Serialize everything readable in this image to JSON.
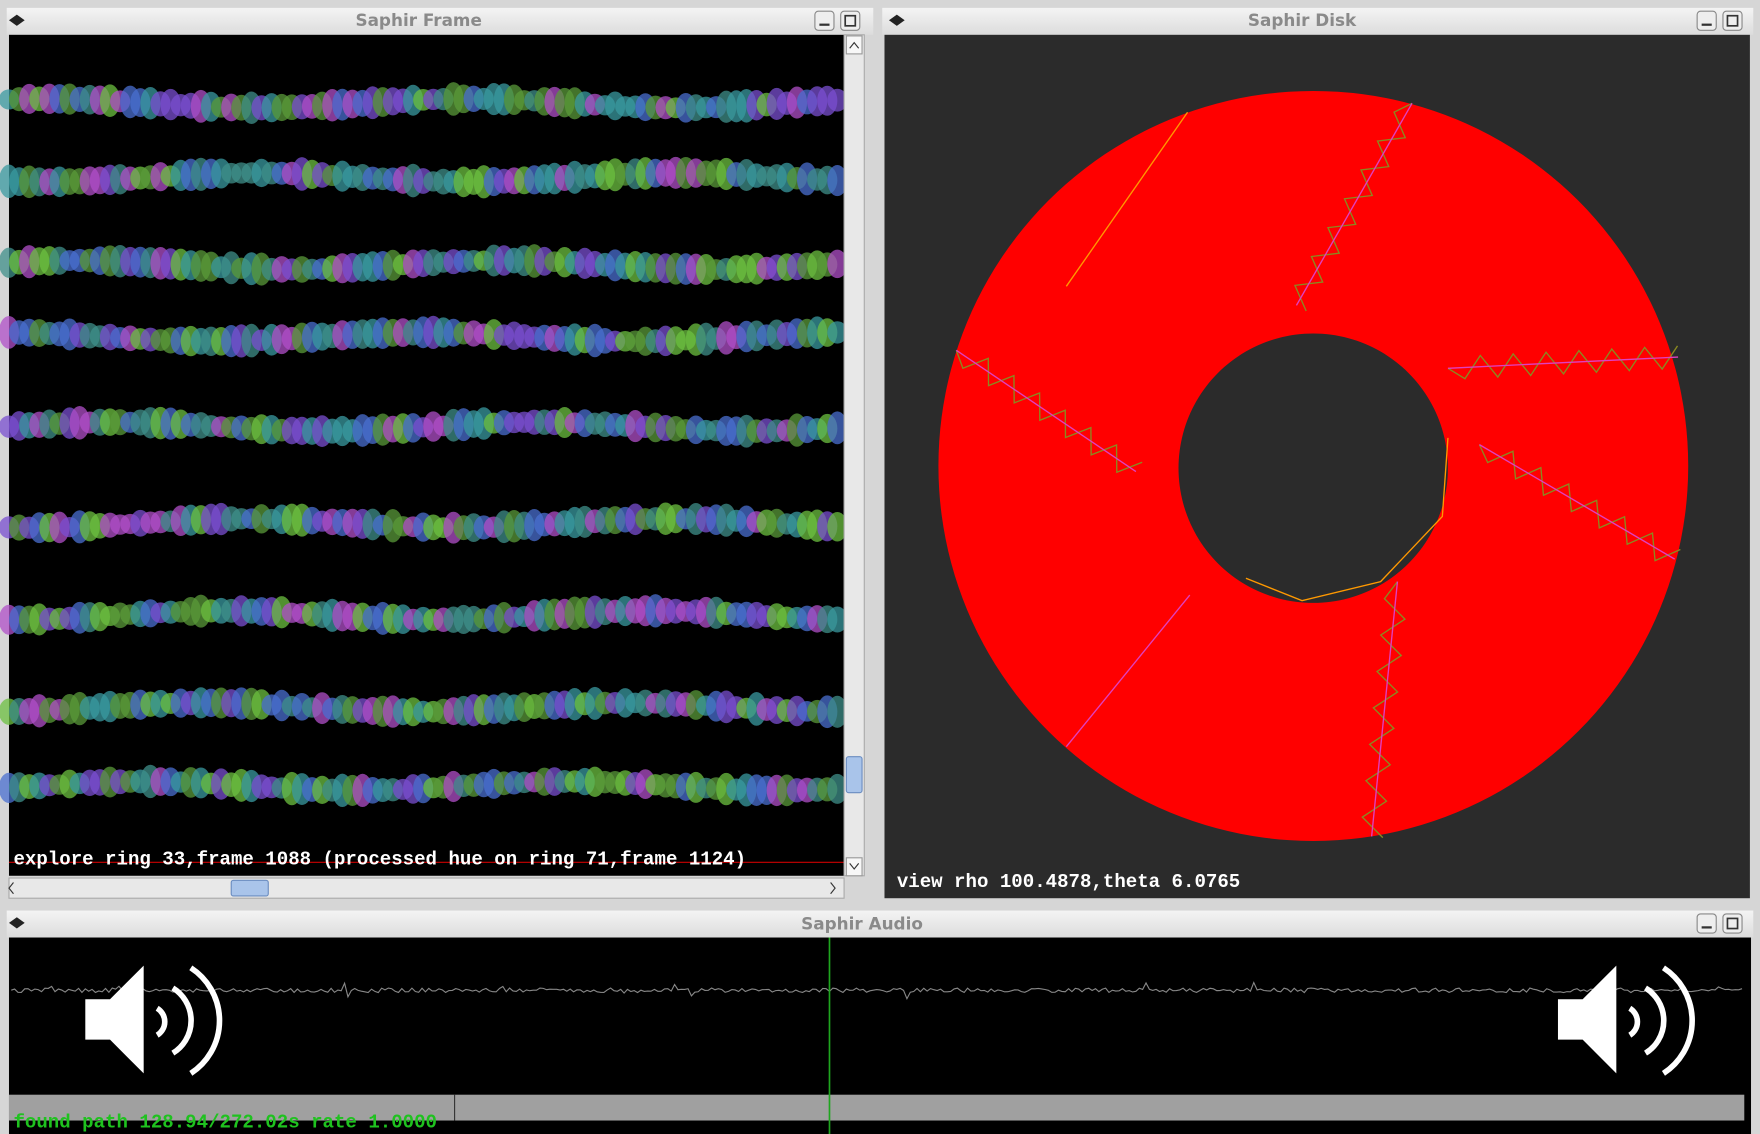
{
  "windows": [
    {
      "title": "Saphir Frame",
      "status": "explore ring 33,frame 1088 (processed hue on ring 71,frame 1124)"
    },
    {
      "title": "Saphir Disk",
      "status": "view rho 100.4878,theta 6.0765"
    },
    {
      "title": "Saphir Audio",
      "status": "found path  128.94/272.02s rate 1.0000"
    }
  ]
}
